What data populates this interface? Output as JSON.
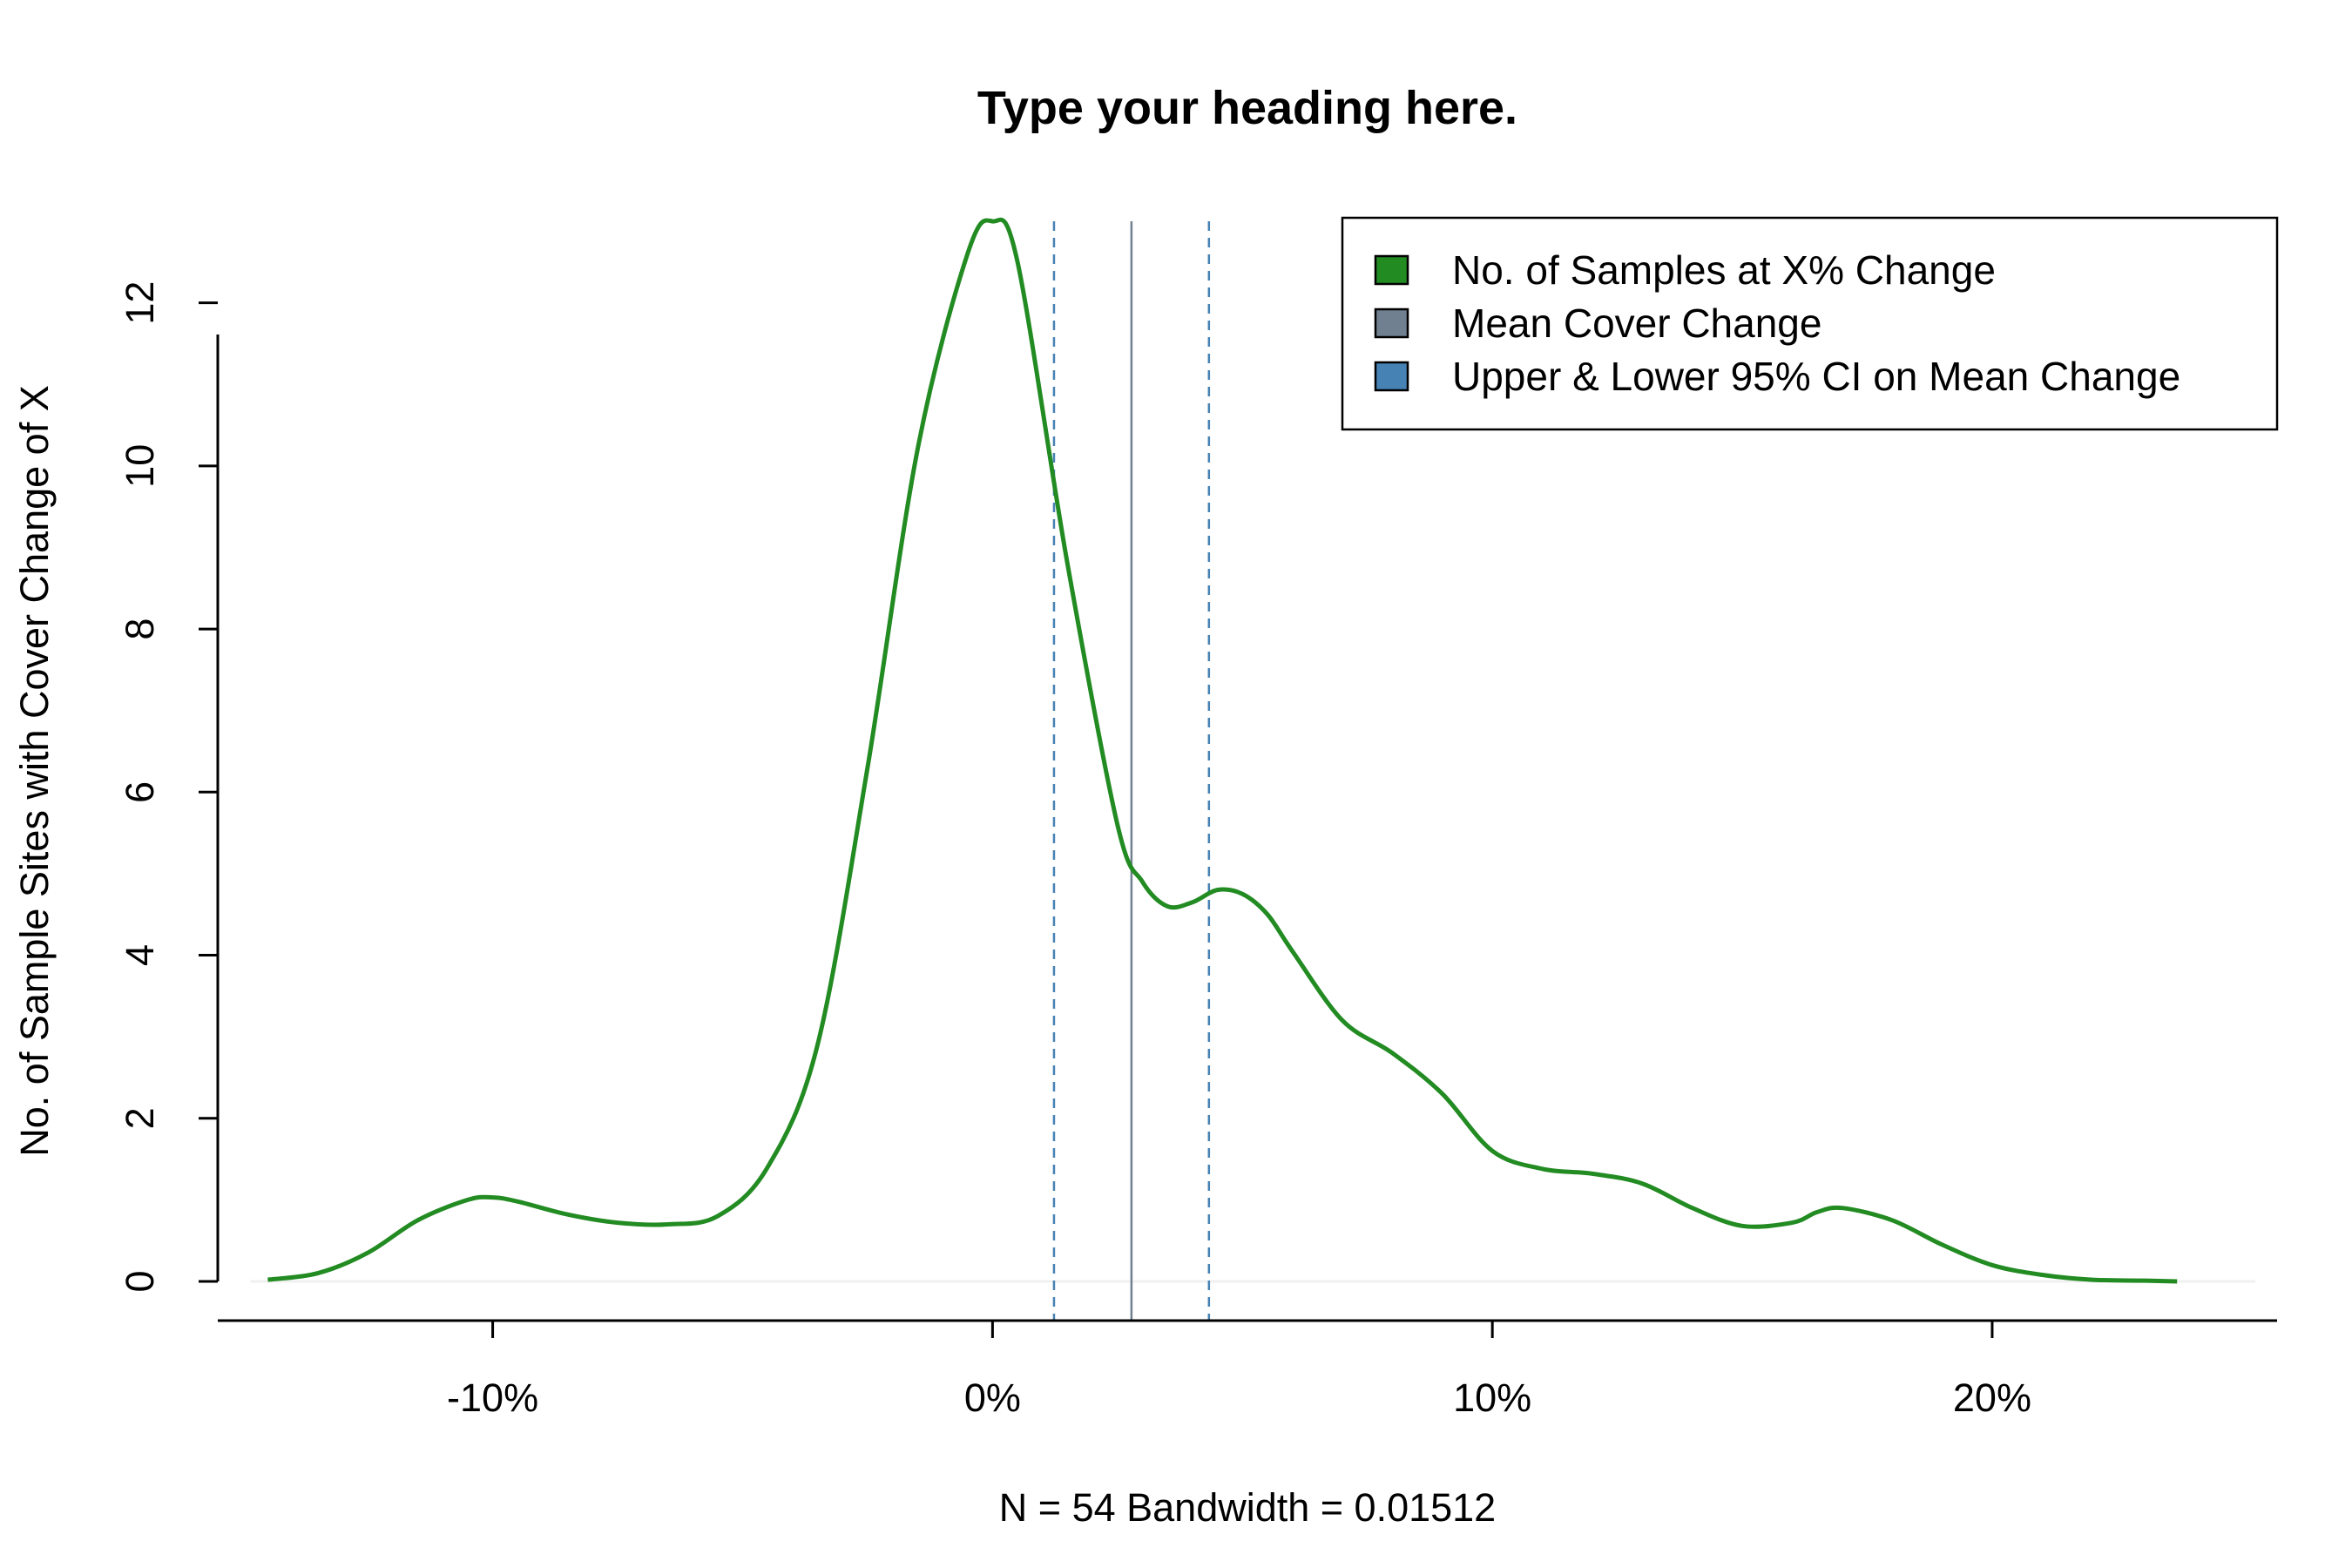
{
  "chart_data": {
    "type": "line",
    "title": "Type your heading here.",
    "xlabel": "N = 54   Bandwidth = 0.01512",
    "ylabel": "No. of Sample Sites with Cover Change of X",
    "xlim": [
      -0.155,
      0.257
    ],
    "ylim": [
      0,
      13.0
    ],
    "x_ticks": [
      {
        "value": -0.1,
        "label": "-10%"
      },
      {
        "value": 0.0,
        "label": "0%"
      },
      {
        "value": 0.1,
        "label": "10%"
      },
      {
        "value": 0.2,
        "label": "20%"
      }
    ],
    "y_ticks": [
      {
        "value": 0,
        "label": "0"
      },
      {
        "value": 2,
        "label": "2"
      },
      {
        "value": 4,
        "label": "4"
      },
      {
        "value": 6,
        "label": "6"
      },
      {
        "value": 8,
        "label": "8"
      },
      {
        "value": 10,
        "label": "10"
      },
      {
        "value": 12,
        "label": "12"
      }
    ],
    "grid": false,
    "legend_position": "top-right",
    "series": [
      {
        "name": "No. of Samples at X% Change",
        "color": "#228B22",
        "x": [
          -0.145,
          -0.135,
          -0.125,
          -0.115,
          -0.105,
          -0.1,
          -0.095,
          -0.085,
          -0.075,
          -0.065,
          -0.055,
          -0.045,
          -0.035,
          -0.025,
          -0.015,
          -0.005,
          0.0,
          0.005,
          0.015,
          0.025,
          0.03,
          0.035,
          0.04,
          0.045,
          0.05,
          0.055,
          0.06,
          0.07,
          0.08,
          0.09,
          0.1,
          0.11,
          0.12,
          0.13,
          0.14,
          0.15,
          0.16,
          0.165,
          0.17,
          0.18,
          0.19,
          0.2,
          0.21,
          0.22,
          0.23,
          0.237
        ],
        "y": [
          0.02,
          0.1,
          0.35,
          0.75,
          1.0,
          1.03,
          0.98,
          0.82,
          0.72,
          0.7,
          0.8,
          1.4,
          2.9,
          6.3,
          10.2,
          12.6,
          13.0,
          12.5,
          8.8,
          5.6,
          4.9,
          4.6,
          4.65,
          4.8,
          4.75,
          4.5,
          4.05,
          3.2,
          2.8,
          2.3,
          1.6,
          1.38,
          1.32,
          1.2,
          0.9,
          0.68,
          0.72,
          0.85,
          0.9,
          0.75,
          0.45,
          0.2,
          0.08,
          0.02,
          0.01,
          0.0
        ]
      }
    ],
    "vlines": [
      {
        "name": "Mean Cover Change",
        "x": 0.0278,
        "color": "#708090",
        "style": "solid"
      },
      {
        "name": "Upper & Lower 95% CI on Mean Change",
        "x": 0.0123,
        "color": "#4682B4",
        "style": "dashed"
      },
      {
        "name": "Upper & Lower 95% CI on Mean Change",
        "x": 0.0433,
        "color": "#4682B4",
        "style": "dashed"
      }
    ],
    "legend": [
      {
        "label": "No. of Samples at X% Change",
        "color": "#228B22"
      },
      {
        "label": "Mean Cover Change",
        "color": "#708090"
      },
      {
        "label": "Upper & Lower 95% CI on Mean Change",
        "color": "#4682B4"
      }
    ]
  }
}
